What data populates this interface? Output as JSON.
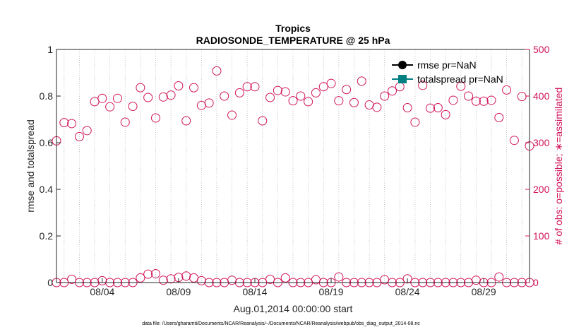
{
  "chart_data": {
    "type": "scatter",
    "title": "Tropics",
    "subtitle": "RADIOSONDE_TEMPERATURE @ 25 hPa",
    "xlabel": "Aug.01,2014 00:00:00 start",
    "ylabel_left": "rmse and totalspread",
    "ylabel_right": "# of obs: o=possible; ∗=assimilated",
    "ylim_left": [
      0,
      1
    ],
    "ylim_right": [
      0,
      500
    ],
    "yticks_left": [
      "0",
      "0.2",
      "0.4",
      "0.6",
      "0.8",
      "1"
    ],
    "yticks_left_values": [
      0,
      0.2,
      0.4,
      0.6,
      0.8,
      1
    ],
    "yticks_right": [
      "0",
      "100",
      "200",
      "300",
      "400",
      "500"
    ],
    "yticks_right_values": [
      0,
      100,
      200,
      300,
      400,
      500
    ],
    "xlim_days": [
      0.5,
      31.5
    ],
    "xticks": [
      "08/04",
      "08/09",
      "08/14",
      "08/19",
      "08/24",
      "08/29"
    ],
    "xticks_values": [
      3.5,
      8.5,
      13.5,
      18.5,
      23.5,
      28.5
    ],
    "legend": [
      {
        "label": "rmse pr=NaN",
        "color": "#000000",
        "marker": "circle"
      },
      {
        "label": "totalspread pr=NaN",
        "color": "#008080",
        "marker": "square"
      }
    ],
    "series": [
      {
        "name": "possible (upper)",
        "axis": "right",
        "marker": "open-circle",
        "color": "#d0145a",
        "x": [
          0.5,
          1.0,
          1.5,
          2.0,
          2.5,
          3.0,
          3.5,
          4.0,
          4.5,
          5.0,
          5.5,
          6.0,
          6.5,
          7.0,
          7.5,
          8.0,
          8.5,
          9.0,
          9.5,
          10.0,
          10.5,
          11.0,
          11.5,
          12.0,
          12.5,
          13.0,
          13.5,
          14.0,
          14.5,
          15.0,
          15.5,
          16.0,
          16.5,
          17.0,
          17.5,
          18.0,
          18.5,
          19.0,
          19.5,
          20.0,
          20.5,
          21.0,
          21.5,
          22.0,
          22.5,
          23.0,
          23.5,
          24.0,
          24.5,
          25.0,
          25.5,
          26.0,
          26.5,
          27.0,
          27.5,
          28.0,
          28.5,
          29.0,
          29.5,
          30.0,
          30.5,
          31.0,
          31.5
        ],
        "values": [
          304,
          343,
          341,
          313,
          326,
          388,
          395,
          377,
          395,
          344,
          378,
          418,
          397,
          353,
          398,
          402,
          422,
          347,
          418,
          380,
          385,
          454,
          400,
          359,
          407,
          420,
          420,
          347,
          397,
          412,
          409,
          390,
          400,
          388,
          407,
          420,
          427,
          390,
          414,
          386,
          432,
          381,
          376,
          400,
          411,
          420,
          375,
          344,
          423,
          374,
          375,
          360,
          391,
          421,
          400,
          389,
          389,
          391,
          354,
          413,
          305,
          399,
          293
        ]
      },
      {
        "name": "possible (near zero)",
        "axis": "right",
        "marker": "open-circle",
        "color": "#d0145a",
        "x": [
          0.5,
          1.0,
          1.5,
          2.0,
          2.5,
          3.0,
          3.5,
          4.0,
          4.5,
          5.0,
          5.5,
          6.0,
          6.5,
          7.0,
          7.5,
          8.0,
          8.5,
          9.0,
          9.5,
          10.0,
          10.5,
          11.0,
          11.5,
          12.0,
          12.5,
          13.0,
          13.5,
          14.0,
          14.5,
          15.0,
          15.5,
          16.0,
          16.5,
          17.0,
          17.5,
          18.0,
          18.5,
          19.0,
          19.5,
          20.0,
          20.5,
          21.0,
          21.5,
          22.0,
          22.5,
          23.0,
          23.5,
          24.0,
          24.5,
          25.0,
          25.5,
          26.0,
          26.5,
          27.0,
          27.5,
          28.0,
          28.5,
          29.0,
          29.5,
          30.0,
          30.5,
          31.0,
          31.5
        ],
        "values": [
          0,
          0,
          7,
          0,
          0,
          0,
          4,
          0,
          0,
          0,
          0,
          10,
          18,
          19,
          5,
          8,
          11,
          14,
          10,
          4,
          0,
          0,
          0,
          5,
          0,
          0,
          0,
          0,
          7,
          0,
          10,
          0,
          0,
          0,
          6,
          0,
          0,
          12,
          0,
          0,
          0,
          0,
          0,
          6,
          0,
          0,
          8,
          0,
          0,
          0,
          0,
          0,
          0,
          0,
          0,
          5,
          0,
          0,
          12,
          0,
          0,
          0,
          0
        ]
      }
    ],
    "footnote": "data file: /Users/gharamti/Documents/NCAR/Reanalysis/~/Documents/NCAR/Reanalysis/webpub/obs_diag_output_2014-08.nc"
  }
}
